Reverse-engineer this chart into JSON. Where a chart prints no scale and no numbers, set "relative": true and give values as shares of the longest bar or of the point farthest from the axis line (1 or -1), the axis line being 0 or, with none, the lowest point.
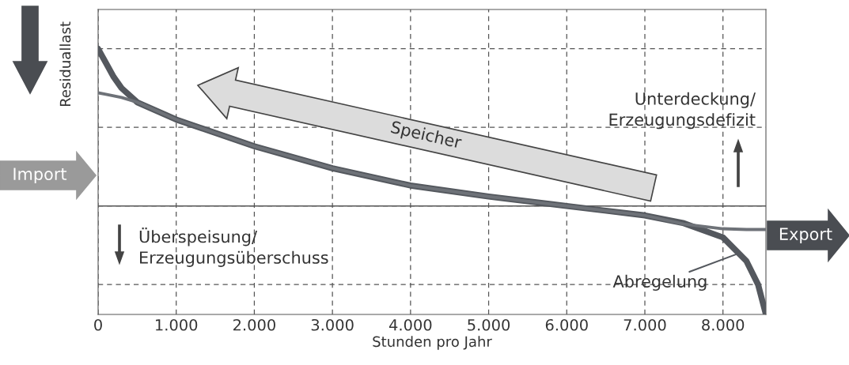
{
  "chart_data": {
    "type": "line",
    "relative": true,
    "xlabel": "Stunden pro Jahr",
    "ylabel": "Residuallast",
    "x": [
      0,
      100,
      200,
      300,
      500,
      1000,
      2000,
      3000,
      4000,
      5000,
      6000,
      7000,
      7500,
      8000,
      8300,
      8450,
      8550
    ],
    "series": [
      {
        "color": "#54585e",
        "values": [
          1.0,
          0.91,
          0.82,
          0.75,
          0.66,
          0.55,
          0.38,
          0.24,
          0.13,
          0.06,
          0.0,
          -0.06,
          -0.11,
          -0.2,
          -0.35,
          -0.5,
          -0.69
        ]
      },
      {
        "color": "#6e7278",
        "values": [
          0.72,
          0.71,
          0.7,
          0.69,
          0.66,
          0.55,
          0.38,
          0.24,
          0.13,
          0.06,
          0.0,
          -0.06,
          -0.115,
          -0.145,
          -0.15,
          -0.15,
          -0.15
        ]
      }
    ],
    "xlim": [
      0,
      8550
    ],
    "xticks": [
      0,
      {
        "value": 1000,
        "label": "1.000"
      },
      {
        "value": 2000,
        "label": "2.000"
      },
      {
        "value": 3000,
        "label": "3.000"
      },
      {
        "value": 4000,
        "label": "4.000"
      },
      {
        "value": 5000,
        "label": "5.000"
      },
      {
        "value": 6000,
        "label": "6.000"
      },
      {
        "value": 7000,
        "label": "7.000"
      },
      {
        "value": 8000,
        "label": "8.000"
      }
    ],
    "grid": true,
    "tick_labels": "x",
    "marker": "none",
    "line_style": "solid",
    "annotations": [
      "Speicher",
      "Unterdeckung/\nErzeugungsdefizit",
      "Überspeisung/\nErzeugungsüberschuss",
      {
        "text": "Abregelung",
        "x": 8210,
        "y": -0.3
      },
      "Import",
      "Export"
    ]
  }
}
